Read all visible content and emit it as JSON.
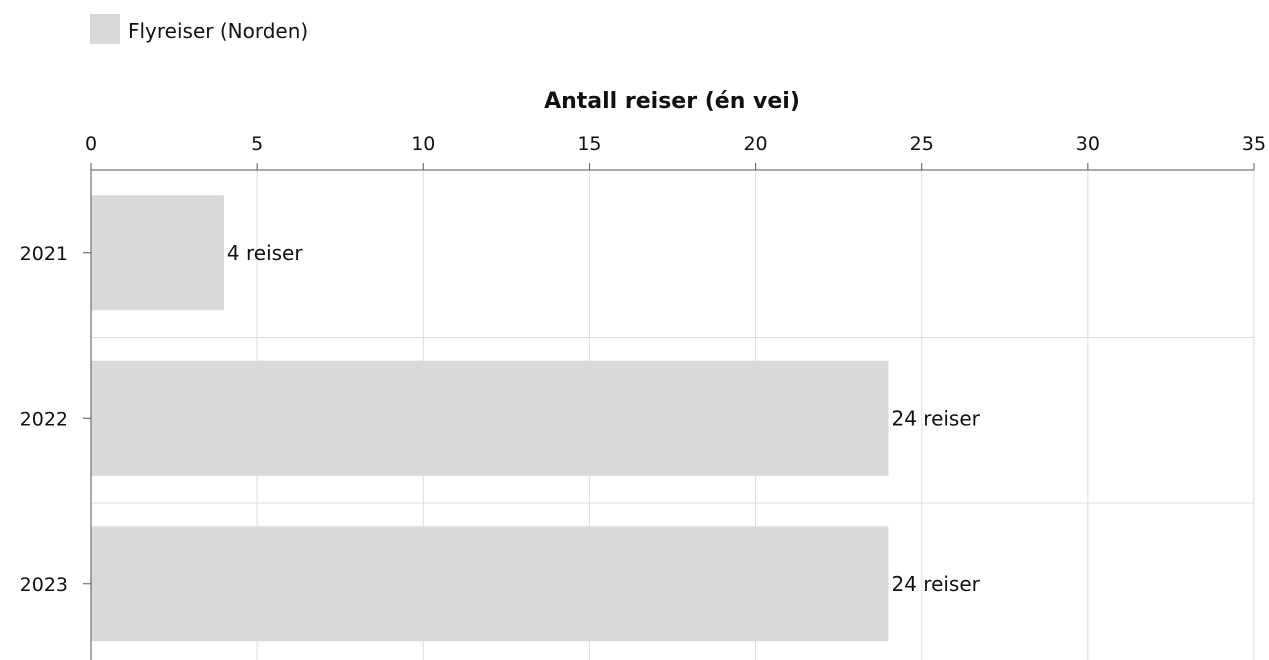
{
  "chart_data": {
    "type": "bar",
    "orientation": "horizontal",
    "categories": [
      "2021",
      "2022",
      "2023"
    ],
    "series": [
      {
        "name": "Flyreiser (Norden)",
        "values": [
          4,
          24,
          24
        ],
        "color": "#d9d9d9"
      }
    ],
    "data_labels": [
      "4 reiser",
      "24 reiser",
      "24 reiser"
    ],
    "xlabel": "Antall reiser (én vei)",
    "xlim": [
      0,
      35
    ],
    "xticks": [
      0,
      5,
      10,
      15,
      20,
      25,
      30,
      35
    ],
    "x_axis_position": "top",
    "grid": true,
    "legend_position": "top-left"
  },
  "colors": {
    "bar": "#d9d9d9",
    "grid": "#dddddd",
    "axis": "#555555"
  }
}
